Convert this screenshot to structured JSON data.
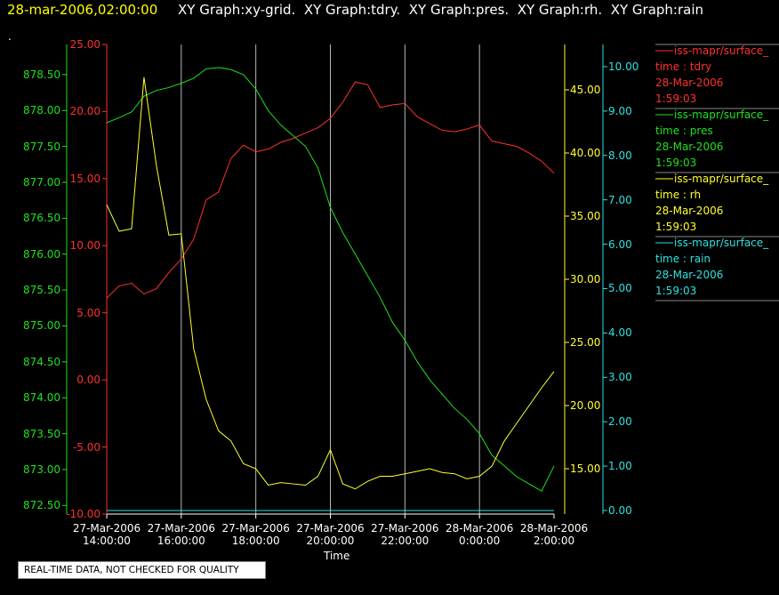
{
  "chart_data": {
    "type": "line",
    "title": "28-mar-2006,02:00:00",
    "subtitle": "XY Graph:xy-grid.  XY Graph:tdry.  XY Graph:pres.  XY Graph:rh.  XY Graph:rain",
    "annotation": ".",
    "xlabel": "Time",
    "footer": "REAL-TIME DATA, NOT CHECKED FOR QUALITY",
    "grid": true,
    "x": [
      "2006-03-27T14:00",
      "2006-03-27T14:20",
      "2006-03-27T14:40",
      "2006-03-27T15:00",
      "2006-03-27T15:20",
      "2006-03-27T15:40",
      "2006-03-27T16:00",
      "2006-03-27T16:20",
      "2006-03-27T16:40",
      "2006-03-27T17:00",
      "2006-03-27T17:20",
      "2006-03-27T17:40",
      "2006-03-27T18:00",
      "2006-03-27T18:20",
      "2006-03-27T18:40",
      "2006-03-27T19:00",
      "2006-03-27T19:20",
      "2006-03-27T19:40",
      "2006-03-27T20:00",
      "2006-03-27T20:20",
      "2006-03-27T20:40",
      "2006-03-27T21:00",
      "2006-03-27T21:20",
      "2006-03-27T21:40",
      "2006-03-27T22:00",
      "2006-03-27T22:20",
      "2006-03-27T22:40",
      "2006-03-27T23:00",
      "2006-03-27T23:20",
      "2006-03-27T23:40",
      "2006-03-28T00:00",
      "2006-03-28T00:20",
      "2006-03-28T00:40",
      "2006-03-28T01:00",
      "2006-03-28T01:20",
      "2006-03-28T01:40",
      "2006-03-28T02:00"
    ],
    "xlim": [
      "2006-03-27T14:00",
      "2006-03-28T02:00"
    ],
    "xticks": [
      {
        "value": "2006-03-27T14:00",
        "label": "27-Mar-2006\n14:00:00"
      },
      {
        "value": "2006-03-27T16:00",
        "label": "27-Mar-2006\n16:00:00"
      },
      {
        "value": "2006-03-27T18:00",
        "label": "27-Mar-2006\n18:00:00"
      },
      {
        "value": "2006-03-27T20:00",
        "label": "27-Mar-2006\n20:00:00"
      },
      {
        "value": "2006-03-27T22:00",
        "label": "27-Mar-2006\n22:00:00"
      },
      {
        "value": "2006-03-28T00:00",
        "label": "28-Mar-2006\n0:00:00"
      },
      {
        "value": "2006-03-28T02:00",
        "label": "28-Mar-2006\n2:00:00"
      }
    ],
    "ylim": [
      -10,
      25
    ],
    "yticks": [
      {
        "value": -10,
        "label": "-10.00"
      },
      {
        "value": -5,
        "label": "-5.00"
      },
      {
        "value": 0,
        "label": "0.00"
      },
      {
        "value": 5,
        "label": "5.00"
      },
      {
        "value": 10,
        "label": "10.00"
      },
      {
        "value": 15,
        "label": "15.00"
      },
      {
        "value": 20,
        "label": "20.00"
      },
      {
        "value": 25,
        "label": "25.00"
      }
    ],
    "y2lim": [
      872.38,
      878.92
    ],
    "y2ticks": [
      {
        "value": 872.5,
        "label": "872.50"
      },
      {
        "value": 873,
        "label": "873.00"
      },
      {
        "value": 873.5,
        "label": "873.50"
      },
      {
        "value": 874,
        "label": "874.00"
      },
      {
        "value": 874.5,
        "label": "874.50"
      },
      {
        "value": 875,
        "label": "875.00"
      },
      {
        "value": 875.5,
        "label": "875.50"
      },
      {
        "value": 876,
        "label": "876.00"
      },
      {
        "value": 876.5,
        "label": "876.50"
      },
      {
        "value": 877,
        "label": "877.00"
      },
      {
        "value": 877.5,
        "label": "877.50"
      },
      {
        "value": 878,
        "label": "878.00"
      },
      {
        "value": 878.5,
        "label": "878.50"
      }
    ],
    "y3lim": [
      11.41,
      48.59
    ],
    "y3ticks": [
      {
        "value": 15,
        "label": "15.00"
      },
      {
        "value": 20,
        "label": "20.00"
      },
      {
        "value": 25,
        "label": "25.00"
      },
      {
        "value": 30,
        "label": "30.00"
      },
      {
        "value": 35,
        "label": "35.00"
      },
      {
        "value": 40,
        "label": "40.00"
      },
      {
        "value": 45,
        "label": "45.00"
      }
    ],
    "y4lim": [
      -0.08,
      10.5
    ],
    "y4ticks": [
      {
        "value": 0,
        "label": "0.00"
      },
      {
        "value": 1,
        "label": "1.00"
      },
      {
        "value": 2,
        "label": "2.00"
      },
      {
        "value": 3,
        "label": "3.00"
      },
      {
        "value": 4,
        "label": "4.00"
      },
      {
        "value": 5,
        "label": "5.00"
      },
      {
        "value": 6,
        "label": "6.00"
      },
      {
        "value": 7,
        "label": "7.00"
      },
      {
        "value": 8,
        "label": "8.00"
      },
      {
        "value": 9,
        "label": "9.00"
      },
      {
        "value": 10,
        "label": "10.00"
      }
    ],
    "series": [
      {
        "name": "iss-mapr/surface_",
        "legend_lines": [
          "time : tdry",
          "28-Mar-2006",
          "1:59:03"
        ],
        "color": "#ff3030",
        "axis": "y",
        "values": [
          6.1,
          7.0,
          7.2,
          6.4,
          6.8,
          8.0,
          9.0,
          10.5,
          13.4,
          14.0,
          16.5,
          17.5,
          17.0,
          17.2,
          17.7,
          18.0,
          18.4,
          18.8,
          19.5,
          20.7,
          22.2,
          22.0,
          20.3,
          20.5,
          20.6,
          19.6,
          19.1,
          18.6,
          18.5,
          18.7,
          19.0,
          17.8,
          17.6,
          17.4,
          16.9,
          16.3,
          15.4
        ]
      },
      {
        "name": "iss-mapr/surface_",
        "legend_lines": [
          "time : pres",
          "28-Mar-2006",
          "1:59:03"
        ],
        "color": "#20e020",
        "axis": "y2",
        "values": [
          877.83,
          877.9,
          877.98,
          878.2,
          878.28,
          878.32,
          878.38,
          878.45,
          878.58,
          878.6,
          878.57,
          878.5,
          878.3,
          878.0,
          877.8,
          877.65,
          877.5,
          877.2,
          876.65,
          876.3,
          876.0,
          875.7,
          875.4,
          875.05,
          874.8,
          874.5,
          874.25,
          874.05,
          873.85,
          873.7,
          873.5,
          873.2,
          873.05,
          872.9,
          872.8,
          872.7,
          873.05
        ]
      },
      {
        "name": "iss-mapr/surface_",
        "legend_lines": [
          "time : rh",
          "28-Mar-2006",
          "1:59:03"
        ],
        "color": "#ffff30",
        "axis": "y3",
        "values": [
          35.9,
          33.8,
          34,
          46,
          39.0,
          33.5,
          33.6,
          24.5,
          20.5,
          18.0,
          17.2,
          15.4,
          15.0,
          13.7,
          13.9,
          13.8,
          13.7,
          14.4,
          16.5,
          13.8,
          13.4,
          14.0,
          14.4,
          14.4,
          14.6,
          14.8,
          15.0,
          14.7,
          14.6,
          14.2,
          14.4,
          15.2,
          17.2,
          18.6,
          20.0,
          21.4,
          22.7
        ]
      },
      {
        "name": "iss-mapr/surface_",
        "legend_lines": [
          "time : rain",
          "28-Mar-2006",
          "1:59:03"
        ],
        "color": "#30e0e0",
        "axis": "y4",
        "values": [
          0,
          0,
          0,
          0,
          0,
          0,
          0,
          0,
          0,
          0,
          0,
          0,
          0,
          0,
          0,
          0,
          0,
          0,
          0,
          0,
          0,
          0,
          0,
          0,
          0,
          0,
          0,
          0,
          0,
          0,
          0,
          0,
          0,
          0,
          0,
          0,
          0
        ]
      }
    ]
  }
}
